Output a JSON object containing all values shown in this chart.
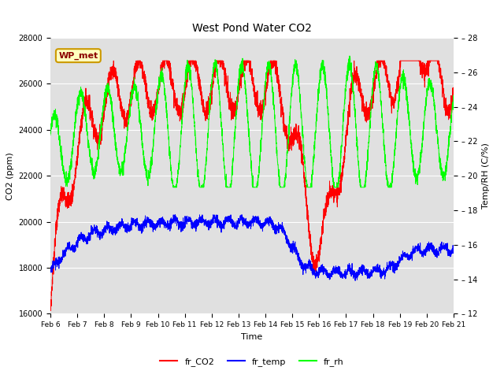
{
  "title": "West Pond Water CO2",
  "xlabel": "Time",
  "ylabel_left": "CO2 (ppm)",
  "ylabel_right": "Temp/RH (C/%)",
  "annotation": "WP_met",
  "legend_labels": [
    "fr_CO2",
    "fr_temp",
    "fr_rh"
  ],
  "colors": {
    "co2": "red",
    "temp": "blue",
    "rh": "lime"
  },
  "ylim_left": [
    16000,
    28000
  ],
  "ylim_right": [
    12,
    28
  ],
  "yticks_left": [
    16000,
    18000,
    20000,
    22000,
    24000,
    26000,
    28000
  ],
  "yticks_right": [
    12,
    14,
    16,
    18,
    20,
    22,
    24,
    26,
    28
  ],
  "xtick_labels": [
    "Feb 6",
    "Feb 7",
    "Feb 8",
    "Feb 9",
    "Feb 10",
    "Feb 11",
    "Feb 12",
    "Feb 13",
    "Feb 14",
    "Feb 15",
    "Feb 16",
    "Feb 17",
    "Feb 18",
    "Feb 19",
    "Feb 20",
    "Feb 21"
  ],
  "background_color": "#e0e0e0",
  "fig_background": "#ffffff",
  "right_tick_labels": [
    " – 12",
    " – 14",
    " – 16",
    " – 18",
    " – 20",
    " – 22",
    " – 24",
    " – 26",
    " – 28"
  ]
}
